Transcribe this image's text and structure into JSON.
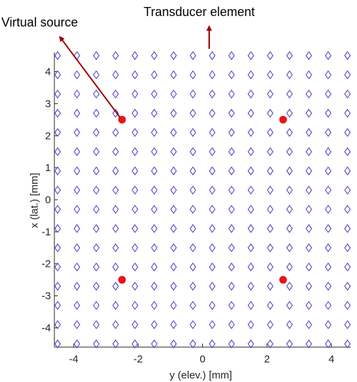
{
  "chart_data": {
    "type": "scatter",
    "xlabel": "y (elev.) [mm]",
    "ylabel": "x (lat.) [mm]",
    "xlim": [
      -4.6,
      4.6
    ],
    "ylim": [
      -4.6,
      4.6
    ],
    "xticks": [
      -4,
      -2,
      0,
      2,
      4
    ],
    "yticks": [
      -4,
      -3,
      -2,
      -1,
      0,
      1,
      2,
      3,
      4
    ],
    "grid": false,
    "legend": "none",
    "series": [
      {
        "marker": "diamond",
        "color": "#3b3bc4",
        "grid_points": {
          "values": [
            -4.5,
            -3.9,
            -3.3,
            -2.7,
            -2.1,
            -1.5,
            -0.9,
            -0.3,
            0.3,
            0.9,
            1.5,
            2.1,
            2.7,
            3.3,
            3.9,
            4.5
          ]
        }
      },
      {
        "marker": "filled-circle",
        "color": "#e8141a",
        "points": [
          {
            "x": -2.5,
            "y": 2.5
          },
          {
            "x": 2.5,
            "y": 2.5
          },
          {
            "x": -2.5,
            "y": -2.5
          },
          {
            "x": 2.5,
            "y": -2.5
          }
        ]
      }
    ],
    "annotations": [
      {
        "text": "Virtual source",
        "color": "#a00000"
      },
      {
        "text": "Transducer element",
        "color": "#a00000"
      }
    ]
  }
}
